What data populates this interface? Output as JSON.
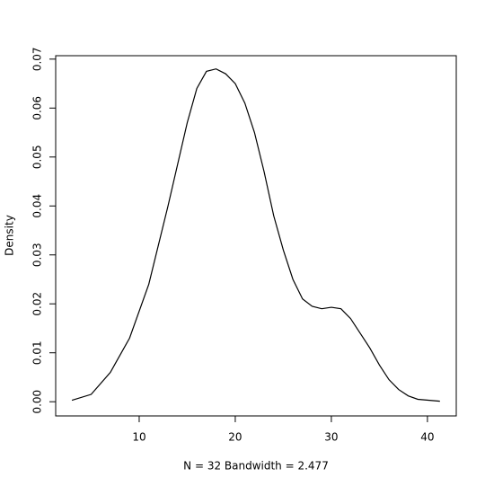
{
  "chart_data": {
    "type": "line",
    "x_label": "N = 32   Bandwidth = 2.477",
    "y_label": "Density",
    "x": [
      3,
      5,
      7,
      9,
      11,
      13,
      15,
      16,
      17,
      18,
      19,
      20,
      21,
      22,
      23,
      24,
      25,
      26,
      27,
      28,
      29,
      30,
      31,
      32,
      33,
      34,
      35,
      36,
      37,
      38,
      39,
      41.3
    ],
    "values": [
      0.0003,
      0.0015,
      0.006,
      0.013,
      0.024,
      0.04,
      0.057,
      0.064,
      0.0675,
      0.068,
      0.067,
      0.065,
      0.061,
      0.055,
      0.047,
      0.038,
      0.031,
      0.025,
      0.021,
      0.0195,
      0.019,
      0.0193,
      0.019,
      0.017,
      0.014,
      0.011,
      0.0075,
      0.0045,
      0.0025,
      0.0012,
      0.0005,
      0.0001
    ],
    "color": "#000000",
    "xlim": [
      1.31,
      43.0
    ],
    "ylim": [
      -0.0029,
      0.0707
    ],
    "xticks": [
      10,
      20,
      30,
      40
    ],
    "yticks": [
      {
        "value": 0,
        "label": "0.00"
      },
      {
        "value": 0.01,
        "label": "0.01"
      },
      {
        "value": 0.02,
        "label": "0.02"
      },
      {
        "value": 0.03,
        "label": "0.03"
      },
      {
        "value": 0.04,
        "label": "0.04"
      },
      {
        "value": 0.05,
        "label": "0.05"
      },
      {
        "value": 0.06,
        "label": "0.06"
      },
      {
        "value": 0.07,
        "label": "0.07"
      }
    ]
  }
}
